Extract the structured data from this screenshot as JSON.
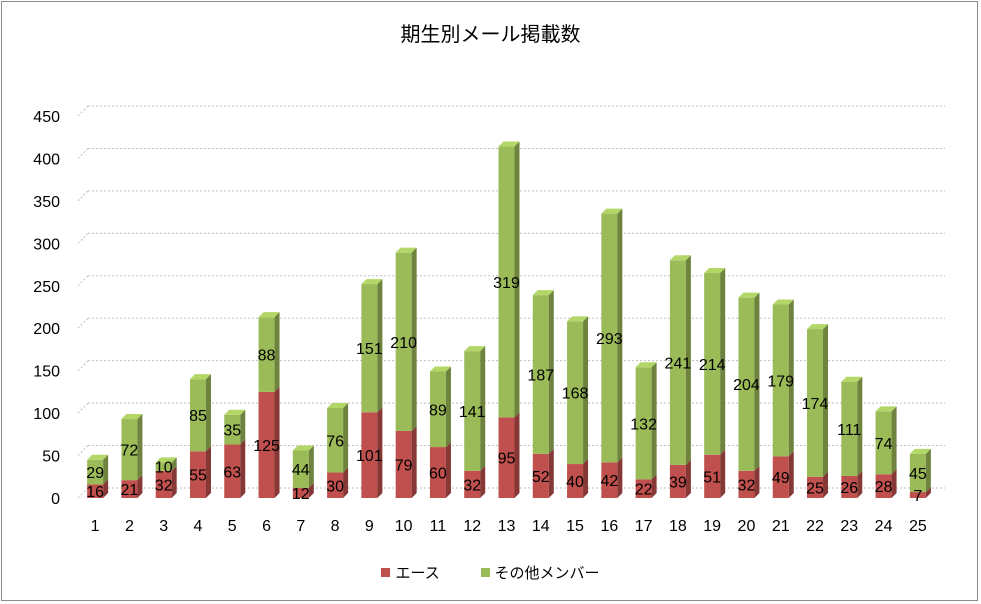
{
  "chart_data": {
    "type": "bar",
    "stacked": true,
    "title": "期生別メール掲載数",
    "categories": [
      "1",
      "2",
      "3",
      "4",
      "5",
      "6",
      "7",
      "8",
      "9",
      "10",
      "11",
      "12",
      "13",
      "14",
      "15",
      "16",
      "17",
      "18",
      "19",
      "20",
      "21",
      "22",
      "23",
      "24",
      "25"
    ],
    "series": [
      {
        "name": "エース",
        "color": "#c0504d",
        "values": [
          16,
          21,
          32,
          55,
          63,
          125,
          12,
          30,
          101,
          79,
          60,
          32,
          95,
          52,
          40,
          42,
          22,
          39,
          51,
          32,
          49,
          25,
          26,
          28,
          7
        ]
      },
      {
        "name": "その他メンバー",
        "color": "#9bbb59",
        "values": [
          29,
          72,
          10,
          85,
          35,
          88,
          44,
          76,
          151,
          210,
          89,
          141,
          319,
          187,
          168,
          293,
          132,
          241,
          214,
          204,
          179,
          174,
          111,
          74,
          45
        ]
      }
    ],
    "ylim": [
      0,
      450
    ],
    "yticks": [
      "0",
      "50",
      "100",
      "150",
      "200",
      "250",
      "300",
      "350",
      "400",
      "450"
    ],
    "grid": true,
    "legend_position": "bottom"
  }
}
